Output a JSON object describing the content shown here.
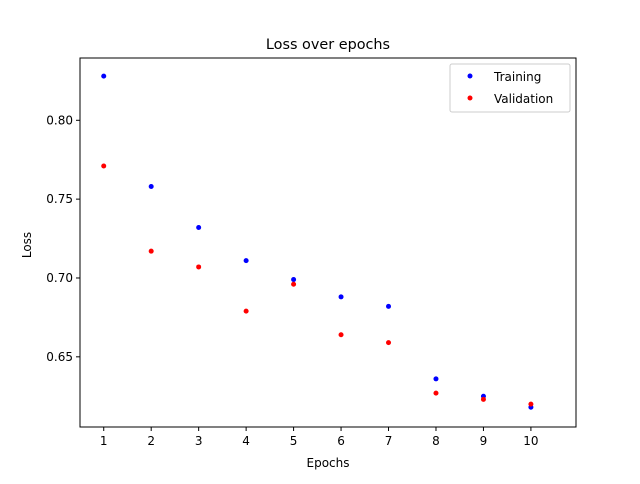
{
  "chart_data": {
    "type": "scatter",
    "title": "Loss over epochs",
    "xlabel": "Epochs",
    "ylabel": "Loss",
    "x": [
      1,
      2,
      3,
      4,
      5,
      6,
      7,
      8,
      9,
      10
    ],
    "xticks": [
      "1",
      "2",
      "3",
      "4",
      "5",
      "6",
      "7",
      "8",
      "9",
      "10"
    ],
    "xlim": [
      0.5,
      10.95
    ],
    "ylim": [
      0.6055,
      0.8395
    ],
    "yticks": [
      0.65,
      0.7,
      0.75,
      0.8
    ],
    "ytick_labels": [
      "0.65",
      "0.70",
      "0.75",
      "0.80"
    ],
    "grid": false,
    "legend_position": "top-right",
    "series": [
      {
        "name": "Training",
        "color": "#0000ff",
        "values": [
          0.828,
          0.758,
          0.732,
          0.711,
          0.699,
          0.688,
          0.682,
          0.636,
          0.625,
          0.618
        ]
      },
      {
        "name": "Validation",
        "color": "#ff0000",
        "values": [
          0.771,
          0.717,
          0.707,
          0.679,
          0.696,
          0.664,
          0.659,
          0.627,
          0.623,
          0.62
        ]
      }
    ]
  }
}
